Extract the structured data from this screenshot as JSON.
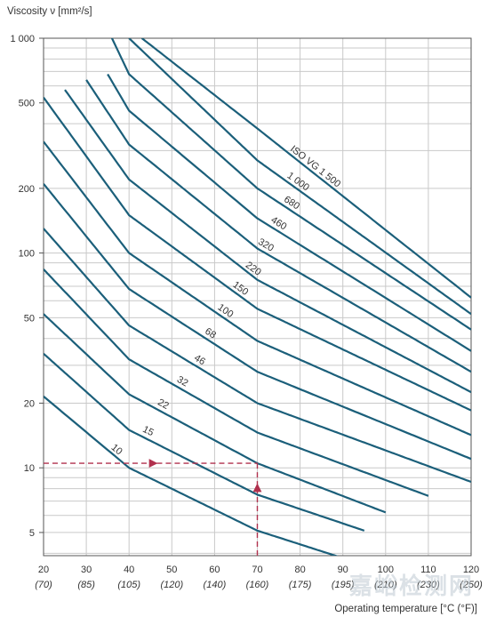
{
  "chart_data": {
    "type": "line",
    "title": "",
    "ylabel": "Viscosity ν [mm²/s]",
    "xlabel": "Operating temperature [°C (°F)]",
    "y_scale": "log",
    "ylim": [
      4,
      1000
    ],
    "xlim": [
      20,
      120
    ],
    "y_ticks": [
      {
        "value": 1000,
        "label": "1 000"
      },
      {
        "value": 500,
        "label": "500"
      },
      {
        "value": 200,
        "label": "200"
      },
      {
        "value": 100,
        "label": "100"
      },
      {
        "value": 50,
        "label": "50"
      },
      {
        "value": 20,
        "label": "20"
      },
      {
        "value": 10,
        "label": "10"
      },
      {
        "value": 5,
        "label": "5"
      }
    ],
    "x_ticks": [
      {
        "value": 20,
        "label": "20",
        "sublabel": "(70)"
      },
      {
        "value": 30,
        "label": "30",
        "sublabel": "(85)"
      },
      {
        "value": 40,
        "label": "40",
        "sublabel": "(105)"
      },
      {
        "value": 50,
        "label": "50",
        "sublabel": "(120)"
      },
      {
        "value": 60,
        "label": "60",
        "sublabel": "(140)"
      },
      {
        "value": 70,
        "label": "70",
        "sublabel": "(160)"
      },
      {
        "value": 80,
        "label": "80",
        "sublabel": "(175)"
      },
      {
        "value": 90,
        "label": "90",
        "sublabel": "(195)"
      },
      {
        "value": 100,
        "label": "100",
        "sublabel": "(210)"
      },
      {
        "value": 110,
        "label": "110",
        "sublabel": "(230)"
      },
      {
        "value": 120,
        "label": "120",
        "sublabel": "(250)"
      }
    ],
    "grid": true,
    "series": [
      {
        "name": "10",
        "x": [
          20,
          40,
          70,
          90
        ],
        "y": [
          21.5,
          10,
          5.1,
          3.8
        ]
      },
      {
        "name": "15",
        "x": [
          20,
          40,
          70,
          95
        ],
        "y": [
          34,
          15,
          7.5,
          5.1
        ]
      },
      {
        "name": "22",
        "x": [
          20,
          40,
          70,
          100
        ],
        "y": [
          52,
          22,
          10.5,
          6.2
        ]
      },
      {
        "name": "32",
        "x": [
          20,
          40,
          70,
          110
        ],
        "y": [
          84,
          32,
          14.6,
          7.4
        ]
      },
      {
        "name": "46",
        "x": [
          20,
          40,
          70,
          120
        ],
        "y": [
          130,
          46,
          20,
          8.6
        ]
      },
      {
        "name": "68",
        "x": [
          20,
          40,
          70,
          120
        ],
        "y": [
          210,
          68,
          28,
          11
        ]
      },
      {
        "name": "100",
        "x": [
          20,
          40,
          70,
          120
        ],
        "y": [
          330,
          100,
          39,
          14.2
        ]
      },
      {
        "name": "150",
        "x": [
          20,
          40,
          70,
          120
        ],
        "y": [
          530,
          150,
          55,
          18.5
        ]
      },
      {
        "name": "220",
        "x": [
          25,
          40,
          70,
          120
        ],
        "y": [
          575,
          220,
          75,
          22.5
        ]
      },
      {
        "name": "320",
        "x": [
          30,
          40,
          70,
          120
        ],
        "y": [
          640,
          320,
          105,
          28
        ]
      },
      {
        "name": "460",
        "x": [
          35,
          40,
          70,
          120
        ],
        "y": [
          680,
          460,
          145,
          35
        ]
      },
      {
        "name": "680",
        "x": [
          35,
          40,
          70,
          120
        ],
        "y": [
          1100,
          680,
          200,
          44
        ]
      },
      {
        "name": "1 000",
        "x": [
          40,
          70,
          120
        ],
        "y": [
          1000,
          270,
          52
        ]
      },
      {
        "name": "ISO VG 1 500",
        "x": [
          43,
          70,
          120
        ],
        "y": [
          1000,
          380,
          62
        ]
      }
    ],
    "curve_labels": [
      "10",
      "15",
      "22",
      "32",
      "46",
      "68",
      "100",
      "150",
      "220",
      "320",
      "460",
      "680",
      "1 000",
      "ISO VG 1 500"
    ],
    "annotations": [
      {
        "type": "dashed-arrow",
        "direction": "up",
        "x": 70,
        "y_from": 4,
        "y_to": 8.4
      },
      {
        "type": "dashed-arrow",
        "direction": "right",
        "y": 10.5,
        "x_from": 20,
        "x_to": 46.5
      },
      {
        "type": "dashed-line",
        "y": 10.5,
        "x_from": 46.5,
        "x_to": 70
      }
    ]
  },
  "colors": {
    "curve": "#1b5f7a",
    "grid": "#c9c9c9",
    "annotation": "#b0304d",
    "text": "#333333"
  },
  "watermark": "嘉峪检测网"
}
